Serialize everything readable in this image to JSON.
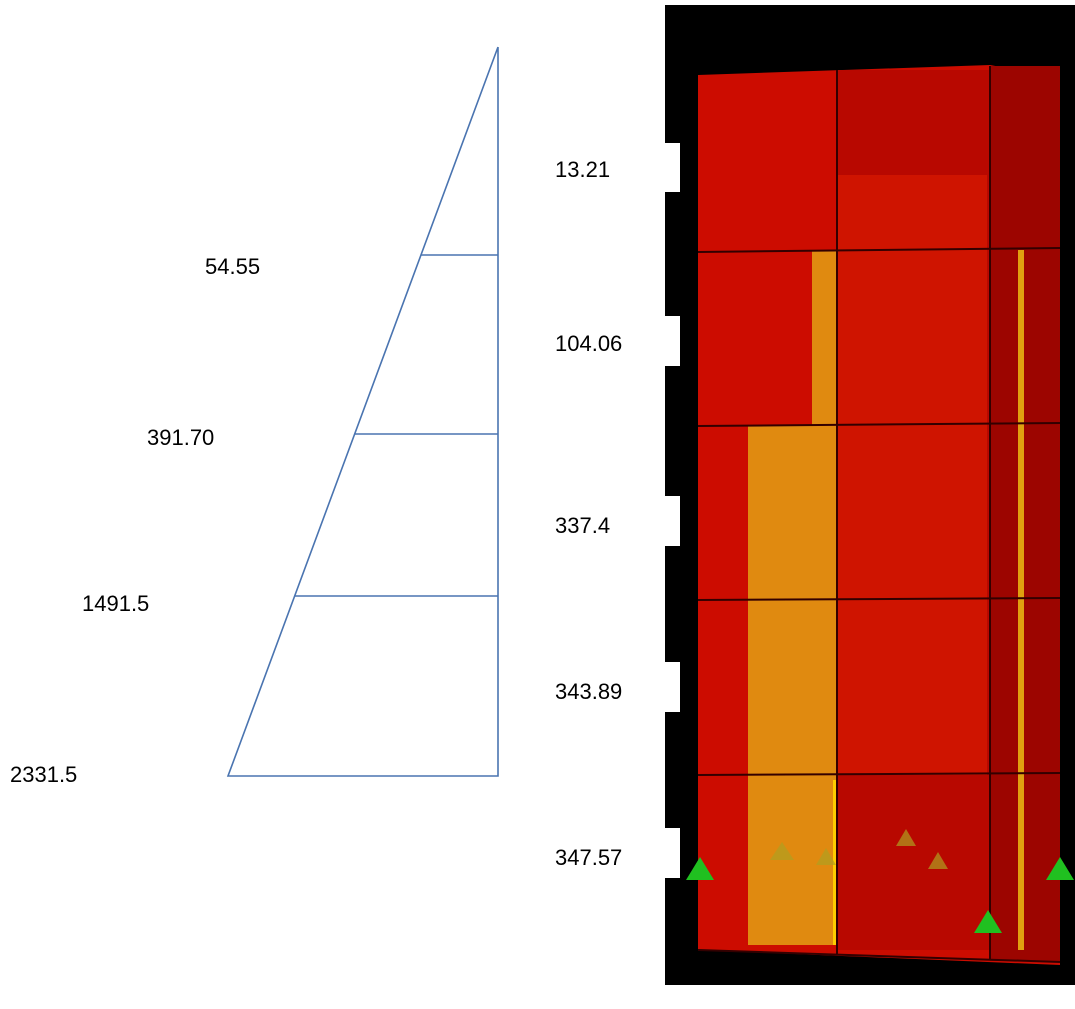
{
  "left_labels": [
    "54.55",
    "391.70",
    "1491.5",
    "2331.5"
  ],
  "right_labels": [
    "13.21",
    "104.06",
    "337.4",
    "343.89",
    "347.57"
  ]
}
